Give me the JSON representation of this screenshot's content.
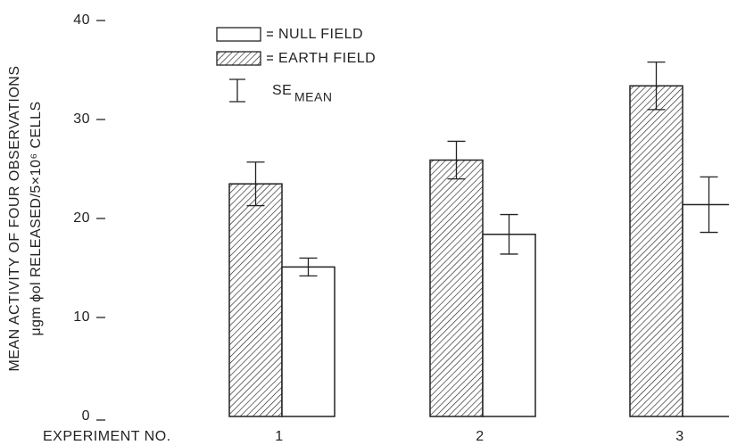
{
  "chart_data": {
    "type": "bar",
    "ylabel": [
      "MEAN ACTIVITY OF FOUR OBSERVATIONS",
      "μgm ϕol RELEASED/5×10⁶ CELLS"
    ],
    "xlabel": "EXPERIMENT NO.",
    "categories": [
      "1",
      "2",
      "3"
    ],
    "series": [
      {
        "name": "EARTH FIELD",
        "color": "#222222",
        "hatch": true,
        "values": [
          23.5,
          25.9,
          33.4
        ],
        "errors": [
          2.2,
          1.9,
          2.4
        ]
      },
      {
        "name": "NULL FIELD",
        "color": "#222222",
        "hatch": false,
        "values": [
          15.1,
          18.4,
          21.4
        ],
        "errors": [
          0.9,
          2.0,
          2.8
        ]
      }
    ],
    "error_legend": {
      "label": "SE",
      "subscript": "MEAN"
    },
    "ylim": [
      0,
      40
    ],
    "yticks": [
      0,
      10,
      20,
      30,
      40
    ],
    "grid": false
  }
}
